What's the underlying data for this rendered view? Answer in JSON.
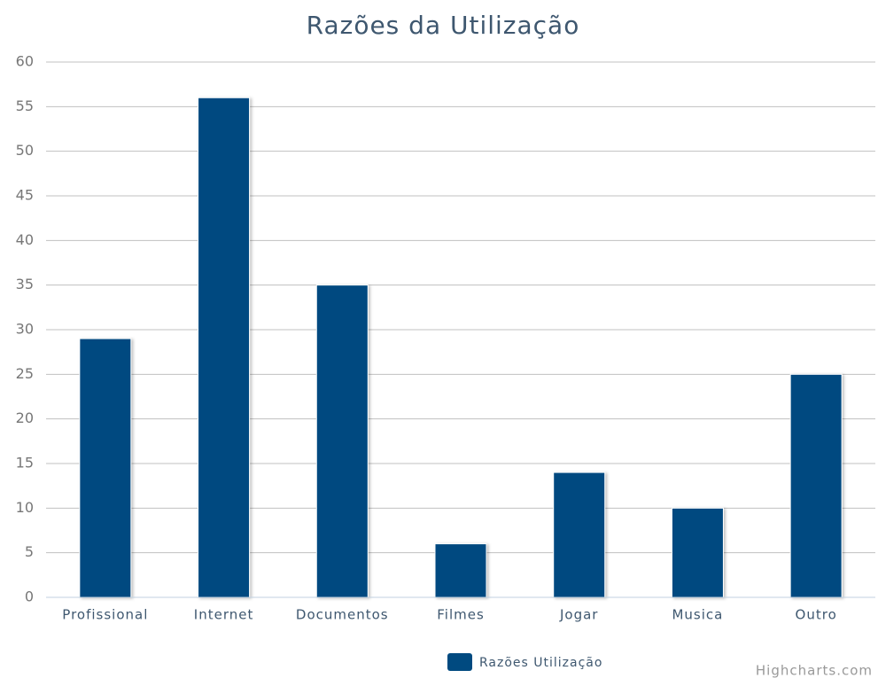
{
  "chart_data": {
    "type": "bar",
    "title": "Razões da Utilização",
    "categories": [
      "Profissional",
      "Internet",
      "Documentos",
      "Filmes",
      "Jogar",
      "Musica",
      "Outro"
    ],
    "series": [
      {
        "name": "Razões Utilização",
        "color": "#004a80",
        "values": [
          29,
          56,
          35,
          6,
          14,
          10,
          25
        ]
      }
    ],
    "ylim": [
      0,
      60
    ],
    "yticks": [
      0,
      5,
      10,
      15,
      20,
      25,
      30,
      35,
      40,
      45,
      50,
      55,
      60
    ],
    "grid": true,
    "legend": "bottom",
    "credits": "Highcharts.com"
  }
}
